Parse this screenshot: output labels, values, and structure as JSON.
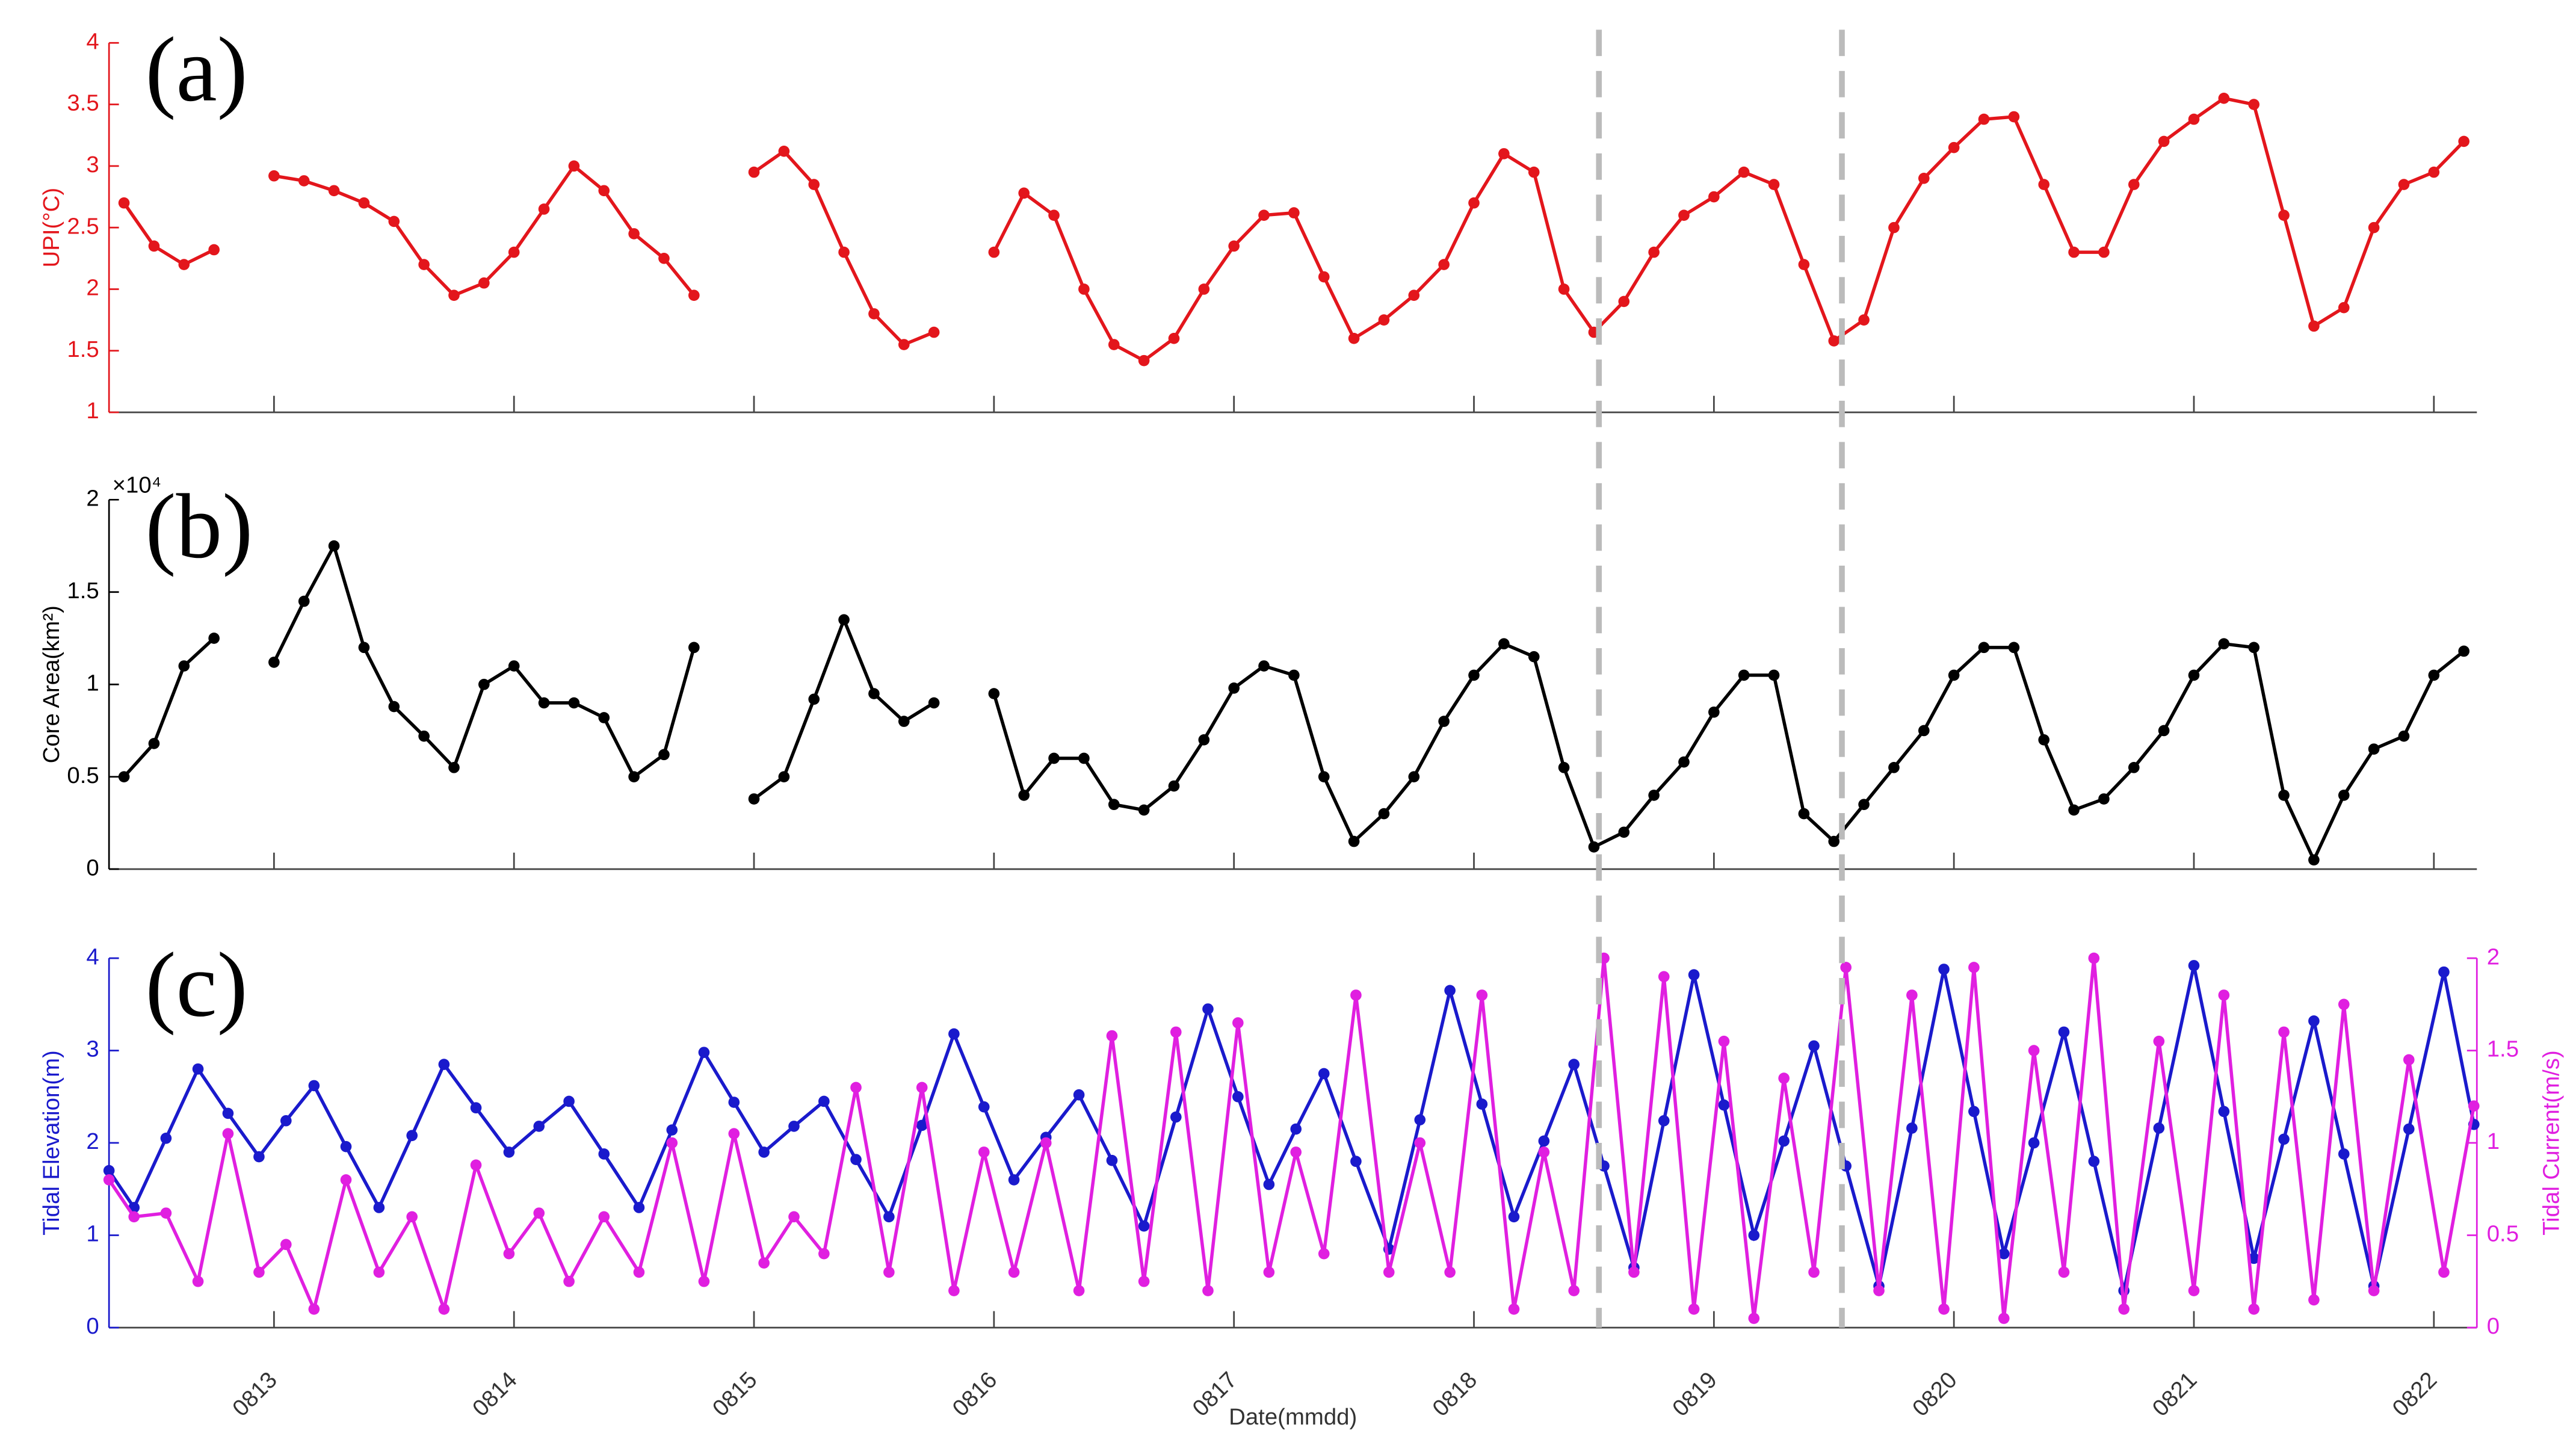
{
  "chart_data": [
    {
      "type": "line",
      "title": "(a)",
      "ylabel": "UPI(°C)",
      "axis_color": "#e3161c",
      "xlim": [
        -16.5,
        220.3
      ],
      "xticks": [
        0,
        24,
        48,
        72,
        96,
        120,
        144,
        168,
        192,
        216
      ],
      "ylim": [
        1,
        4
      ],
      "yticks": [
        1,
        1.5,
        2,
        2.5,
        3,
        3.5,
        4
      ],
      "x": [
        -15,
        -12,
        -9,
        -6,
        -3,
        0,
        3,
        6,
        9,
        12,
        15,
        18,
        21,
        24,
        27,
        30,
        33,
        36,
        39,
        42,
        45,
        48,
        51,
        54,
        57,
        60,
        63,
        66,
        69,
        72,
        75,
        78,
        81,
        84,
        87,
        90,
        93,
        96,
        99,
        102,
        105,
        108,
        111,
        114,
        117,
        120,
        123,
        126,
        129,
        132,
        135,
        138,
        141,
        144,
        147,
        150,
        153,
        156,
        159,
        162,
        165,
        168,
        171,
        174,
        177,
        180,
        183,
        186,
        189,
        192,
        195,
        198,
        201,
        204,
        207,
        210,
        213,
        216,
        219
      ],
      "series": [
        {
          "color": "#e3161c",
          "values": [
            2.7,
            2.35,
            2.2,
            2.32,
            null,
            2.92,
            2.88,
            2.8,
            2.7,
            2.55,
            2.2,
            1.95,
            2.05,
            2.3,
            2.65,
            3.0,
            2.8,
            2.45,
            2.25,
            1.95,
            null,
            2.95,
            3.12,
            2.85,
            2.3,
            1.8,
            1.55,
            1.65,
            null,
            2.3,
            2.78,
            2.6,
            2.0,
            1.55,
            1.42,
            1.6,
            2.0,
            2.35,
            2.6,
            2.62,
            2.1,
            1.6,
            1.75,
            1.95,
            2.2,
            2.7,
            3.1,
            2.95,
            2.0,
            1.65,
            1.9,
            2.3,
            2.6,
            2.75,
            2.95,
            2.85,
            2.2,
            1.58,
            1.75,
            2.5,
            2.9,
            3.15,
            3.38,
            3.4,
            2.85,
            2.3,
            2.3,
            2.85,
            3.2,
            3.38,
            3.55,
            3.5,
            2.6,
            1.7,
            1.85,
            2.5,
            2.85,
            2.95,
            3.2
          ]
        }
      ]
    },
    {
      "type": "line",
      "title": "(b)",
      "ylabel": "Core Area(km²)",
      "y_exponent": "×10⁴",
      "axis_color": "#000000",
      "xlim": [
        -16.5,
        220.3
      ],
      "xticks": [
        0,
        24,
        48,
        72,
        96,
        120,
        144,
        168,
        192,
        216
      ],
      "ylim": [
        0,
        2
      ],
      "yticks": [
        0,
        0.5,
        1,
        1.5,
        2
      ],
      "x": [
        -15,
        -12,
        -9,
        -6,
        -3,
        0,
        3,
        6,
        9,
        12,
        15,
        18,
        21,
        24,
        27,
        30,
        33,
        36,
        39,
        42,
        45,
        48,
        51,
        54,
        57,
        60,
        63,
        66,
        69,
        72,
        75,
        78,
        81,
        84,
        87,
        90,
        93,
        96,
        99,
        102,
        105,
        108,
        111,
        114,
        117,
        120,
        123,
        126,
        129,
        132,
        135,
        138,
        141,
        144,
        147,
        150,
        153,
        156,
        159,
        162,
        165,
        168,
        171,
        174,
        177,
        180,
        183,
        186,
        189,
        192,
        195,
        198,
        201,
        204,
        207,
        210,
        213,
        216,
        219
      ],
      "series": [
        {
          "color": "#000000",
          "values": [
            0.5,
            0.68,
            1.1,
            1.25,
            null,
            1.12,
            1.45,
            1.75,
            1.2,
            0.88,
            0.72,
            0.55,
            1.0,
            1.1,
            0.9,
            0.9,
            0.82,
            0.5,
            0.62,
            1.2,
            null,
            0.38,
            0.5,
            0.92,
            1.35,
            0.95,
            0.8,
            0.9,
            null,
            0.95,
            0.4,
            0.6,
            0.6,
            0.35,
            0.32,
            0.45,
            0.7,
            0.98,
            1.1,
            1.05,
            0.5,
            0.15,
            0.3,
            0.5,
            0.8,
            1.05,
            1.22,
            1.15,
            0.55,
            0.12,
            0.2,
            0.4,
            0.58,
            0.85,
            1.05,
            1.05,
            0.3,
            0.15,
            0.35,
            0.55,
            0.75,
            1.05,
            1.2,
            1.2,
            0.7,
            0.32,
            0.38,
            0.55,
            0.75,
            1.05,
            1.22,
            1.2,
            0.4,
            0.05,
            0.4,
            0.65,
            0.72,
            1.05,
            1.18
          ]
        }
      ]
    },
    {
      "type": "line",
      "title": "(c)",
      "ylabel": "Tidal Elevation(m)",
      "y2label": "Tidal Current(m/s)",
      "xlabel": "Date(mmdd)",
      "axis_color": "#1a1acc",
      "axis2_color": "#e01fe0",
      "xlim": [
        -16.5,
        220.3
      ],
      "xticks": [
        {
          "value": 0,
          "label": "0813"
        },
        {
          "value": 24,
          "label": "0814"
        },
        {
          "value": 48,
          "label": "0815"
        },
        {
          "value": 72,
          "label": "0816"
        },
        {
          "value": 96,
          "label": "0817"
        },
        {
          "value": 120,
          "label": "0818"
        },
        {
          "value": 144,
          "label": "0819"
        },
        {
          "value": 168,
          "label": "0820"
        },
        {
          "value": 192,
          "label": "0821"
        },
        {
          "value": 216,
          "label": "0822"
        }
      ],
      "ylim": [
        0,
        4
      ],
      "yticks": [
        0,
        1,
        2,
        3,
        4
      ],
      "y2lim": [
        0,
        2
      ],
      "y2ticks": [
        0,
        0.5,
        1,
        1.5,
        2
      ],
      "x": [
        -16.5,
        -14,
        -10.8,
        -7.6,
        -4.6,
        -1.5,
        1.2,
        4,
        7.2,
        10.5,
        13.8,
        17,
        20.2,
        23.5,
        26.5,
        29.5,
        33,
        36.5,
        39.8,
        43,
        46,
        49,
        52,
        55,
        58.2,
        61.5,
        64.8,
        68,
        71,
        74,
        77.2,
        80.5,
        83.8,
        87,
        90.2,
        93.4,
        96.4,
        99.5,
        102.2,
        105,
        108.2,
        111.5,
        114.6,
        117.6,
        120.8,
        124,
        127,
        130,
        133,
        136,
        139,
        142,
        145,
        148,
        151,
        154,
        157.2,
        160.5,
        163.8,
        167,
        170,
        173,
        176,
        179,
        182,
        185,
        188.5,
        192,
        195,
        198,
        201,
        204,
        207,
        210,
        213.5,
        217,
        220
      ],
      "series": [
        {
          "color": "#1a1acc",
          "values": [
            1.7,
            1.3,
            2.05,
            2.8,
            2.32,
            1.85,
            2.24,
            2.62,
            1.96,
            1.3,
            2.08,
            2.85,
            2.38,
            1.9,
            2.18,
            2.45,
            1.88,
            1.3,
            2.14,
            2.98,
            2.44,
            1.9,
            2.18,
            2.45,
            1.82,
            1.2,
            2.19,
            3.18,
            2.39,
            1.6,
            2.06,
            2.52,
            1.81,
            1.1,
            2.28,
            3.45,
            2.5,
            1.55,
            2.15,
            2.75,
            1.8,
            0.85,
            2.25,
            3.65,
            2.42,
            1.2,
            2.02,
            2.85,
            1.75,
            0.65,
            2.24,
            3.82,
            2.41,
            1.0,
            2.02,
            3.05,
            1.75,
            0.45,
            2.16,
            3.88,
            2.34,
            0.8,
            2.0,
            3.2,
            1.8,
            0.4,
            2.16,
            3.92,
            2.34,
            0.75,
            2.04,
            3.32,
            1.88,
            0.45,
            2.15,
            3.85,
            2.2
          ]
        },
        {
          "color": "#e01fe0",
          "axis": "y2",
          "values": [
            0.8,
            0.6,
            0.62,
            0.25,
            1.05,
            0.3,
            0.45,
            0.1,
            0.8,
            0.3,
            0.6,
            0.1,
            0.88,
            0.4,
            0.62,
            0.25,
            0.6,
            0.3,
            1.0,
            0.25,
            1.05,
            0.35,
            0.6,
            0.4,
            1.3,
            0.3,
            1.3,
            0.2,
            0.95,
            0.3,
            1.0,
            0.2,
            1.58,
            0.25,
            1.6,
            0.2,
            1.65,
            0.3,
            0.95,
            0.4,
            1.8,
            0.3,
            1.0,
            0.3,
            1.8,
            0.1,
            0.95,
            0.2,
            2.0,
            0.3,
            1.9,
            0.1,
            1.55,
            0.05,
            1.35,
            0.3,
            1.95,
            0.2,
            1.8,
            0.1,
            1.95,
            0.05,
            1.5,
            0.3,
            2.0,
            0.1,
            1.55,
            0.2,
            1.8,
            0.1,
            1.6,
            0.15,
            1.75,
            0.2,
            1.45,
            0.3,
            1.2
          ]
        }
      ]
    }
  ],
  "reference_lines_x": [
    132.5,
    156.8
  ],
  "reference_line_color": "#bbbbbb"
}
